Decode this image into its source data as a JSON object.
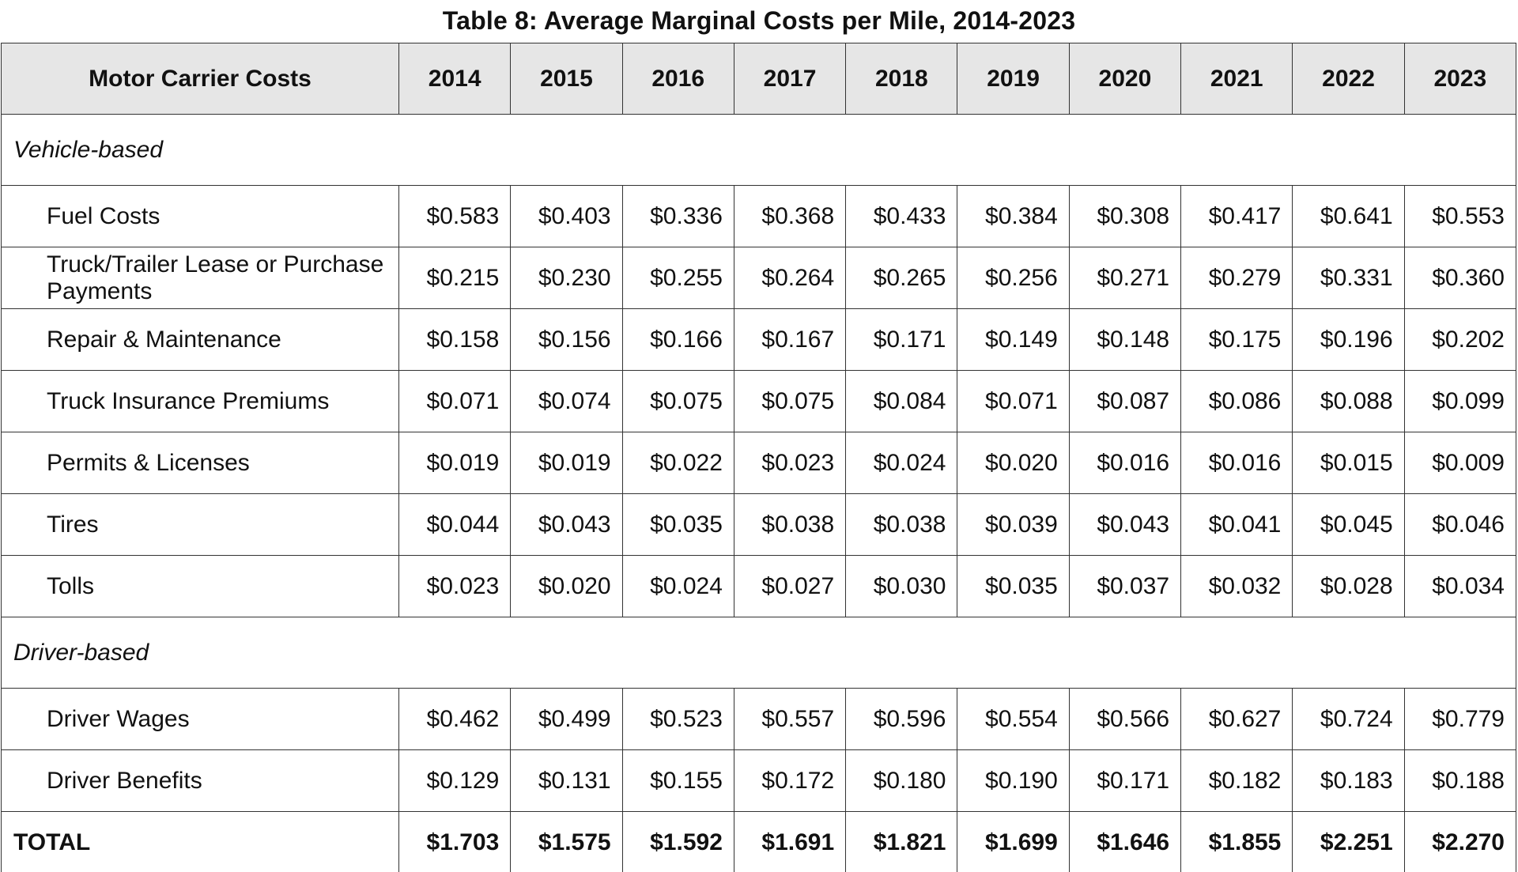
{
  "chart_data": {
    "type": "table",
    "title": "Table 8: Average Marginal Costs per Mile, 2014-2023",
    "header": {
      "label": "Motor Carrier Costs",
      "years": [
        "2014",
        "2015",
        "2016",
        "2017",
        "2018",
        "2019",
        "2020",
        "2021",
        "2022",
        "2023"
      ]
    },
    "sections": [
      {
        "name": "Vehicle-based",
        "rows": [
          {
            "label": "Fuel Costs",
            "values": [
              "$0.583",
              "$0.403",
              "$0.336",
              "$0.368",
              "$0.433",
              "$0.384",
              "$0.308",
              "$0.417",
              "$0.641",
              "$0.553"
            ]
          },
          {
            "label": "Truck/Trailer Lease or Purchase Payments",
            "values": [
              "$0.215",
              "$0.230",
              "$0.255",
              "$0.264",
              "$0.265",
              "$0.256",
              "$0.271",
              "$0.279",
              "$0.331",
              "$0.360"
            ]
          },
          {
            "label": "Repair & Maintenance",
            "values": [
              "$0.158",
              "$0.156",
              "$0.166",
              "$0.167",
              "$0.171",
              "$0.149",
              "$0.148",
              "$0.175",
              "$0.196",
              "$0.202"
            ]
          },
          {
            "label": "Truck Insurance Premiums",
            "values": [
              "$0.071",
              "$0.074",
              "$0.075",
              "$0.075",
              "$0.084",
              "$0.071",
              "$0.087",
              "$0.086",
              "$0.088",
              "$0.099"
            ]
          },
          {
            "label": "Permits & Licenses",
            "values": [
              "$0.019",
              "$0.019",
              "$0.022",
              "$0.023",
              "$0.024",
              "$0.020",
              "$0.016",
              "$0.016",
              "$0.015",
              "$0.009"
            ]
          },
          {
            "label": "Tires",
            "values": [
              "$0.044",
              "$0.043",
              "$0.035",
              "$0.038",
              "$0.038",
              "$0.039",
              "$0.043",
              "$0.041",
              "$0.045",
              "$0.046"
            ]
          },
          {
            "label": "Tolls",
            "values": [
              "$0.023",
              "$0.020",
              "$0.024",
              "$0.027",
              "$0.030",
              "$0.035",
              "$0.037",
              "$0.032",
              "$0.028",
              "$0.034"
            ]
          }
        ]
      },
      {
        "name": "Driver-based",
        "rows": [
          {
            "label": "Driver Wages",
            "values": [
              "$0.462",
              "$0.499",
              "$0.523",
              "$0.557",
              "$0.596",
              "$0.554",
              "$0.566",
              "$0.627",
              "$0.724",
              "$0.779"
            ]
          },
          {
            "label": "Driver Benefits",
            "values": [
              "$0.129",
              "$0.131",
              "$0.155",
              "$0.172",
              "$0.180",
              "$0.190",
              "$0.171",
              "$0.182",
              "$0.183",
              "$0.188"
            ]
          }
        ]
      }
    ],
    "total": {
      "label": "TOTAL",
      "values": [
        "$1.703",
        "$1.575",
        "$1.592",
        "$1.691",
        "$1.821",
        "$1.699",
        "$1.646",
        "$1.855",
        "$2.251",
        "$2.270"
      ]
    }
  }
}
